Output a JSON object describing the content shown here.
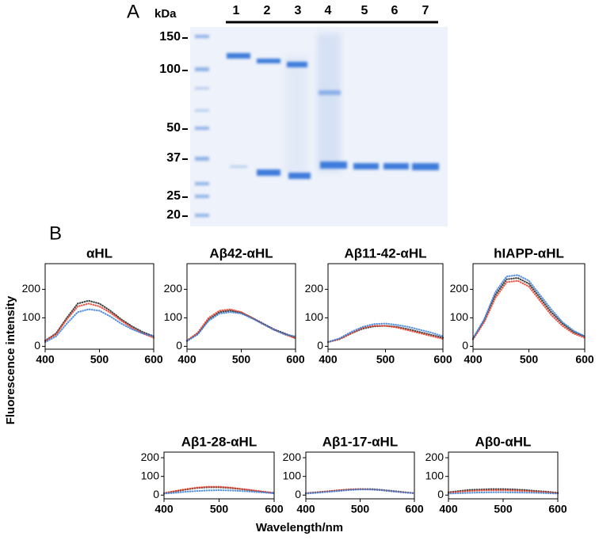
{
  "panel_a": {
    "label": "A",
    "unit": "kDa",
    "markers": [
      "150",
      "100",
      "50",
      "37",
      "25",
      "20"
    ],
    "lanes": [
      "1",
      "2",
      "3",
      "4",
      "5",
      "6",
      "7"
    ]
  },
  "panel_b_label": "B",
  "axis_labels": {
    "y": "Fluorescence intensity",
    "x": "Wavelength/nm"
  },
  "chart_data": [
    {
      "type": "line",
      "title": "αHL",
      "x": [
        400,
        420,
        440,
        460,
        480,
        500,
        520,
        540,
        560,
        580,
        600
      ],
      "xlim": [
        400,
        600
      ],
      "xticks": [
        400,
        500,
        600
      ],
      "ylim": [
        -10,
        290
      ],
      "yticks": [
        0,
        100,
        200
      ],
      "series": [
        {
          "color": "#222222",
          "values": [
            20,
            45,
            100,
            150,
            160,
            150,
            125,
            95,
            70,
            50,
            35
          ]
        },
        {
          "color": "#e8402a",
          "values": [
            18,
            42,
            95,
            140,
            150,
            140,
            118,
            90,
            65,
            45,
            30
          ]
        },
        {
          "color": "#3c7fd8",
          "values": [
            15,
            35,
            80,
            120,
            130,
            125,
            105,
            80,
            60,
            45,
            35
          ]
        }
      ]
    },
    {
      "type": "line",
      "title": "Aβ42-αHL",
      "x": [
        400,
        420,
        440,
        460,
        480,
        500,
        520,
        540,
        560,
        580,
        600
      ],
      "xlim": [
        400,
        600
      ],
      "xticks": [
        400,
        500,
        600
      ],
      "ylim": [
        -10,
        290
      ],
      "yticks": [
        0,
        100,
        200
      ],
      "series": [
        {
          "color": "#222222",
          "values": [
            20,
            45,
            95,
            120,
            125,
            118,
            100,
            80,
            60,
            45,
            30
          ]
        },
        {
          "color": "#e8402a",
          "values": [
            20,
            48,
            100,
            125,
            130,
            120,
            100,
            78,
            58,
            42,
            28
          ]
        },
        {
          "color": "#3c7fd8",
          "values": [
            18,
            42,
            90,
            115,
            120,
            115,
            98,
            78,
            58,
            42,
            35
          ]
        }
      ]
    },
    {
      "type": "line",
      "title": "Aβ11-42-αHL",
      "x": [
        400,
        420,
        440,
        460,
        480,
        500,
        520,
        540,
        560,
        580,
        600
      ],
      "xlim": [
        400,
        600
      ],
      "xticks": [
        400,
        500,
        600
      ],
      "ylim": [
        -10,
        290
      ],
      "yticks": [
        0,
        100,
        200
      ],
      "series": [
        {
          "color": "#222222",
          "values": [
            15,
            25,
            45,
            62,
            70,
            72,
            68,
            60,
            50,
            40,
            30
          ]
        },
        {
          "color": "#e8402a",
          "values": [
            15,
            25,
            45,
            65,
            72,
            72,
            66,
            56,
            46,
            36,
            26
          ]
        },
        {
          "color": "#3c7fd8",
          "values": [
            15,
            28,
            50,
            68,
            78,
            80,
            75,
            68,
            58,
            48,
            35
          ]
        }
      ]
    },
    {
      "type": "line",
      "title": "hIAPP-αHL",
      "x": [
        400,
        420,
        440,
        460,
        480,
        500,
        520,
        540,
        560,
        580,
        600
      ],
      "xlim": [
        400,
        600
      ],
      "xticks": [
        400,
        500,
        600
      ],
      "ylim": [
        -10,
        290
      ],
      "yticks": [
        0,
        100,
        200
      ],
      "series": [
        {
          "color": "#222222",
          "values": [
            25,
            90,
            180,
            235,
            240,
            220,
            170,
            120,
            80,
            50,
            35
          ]
        },
        {
          "color": "#e8402a",
          "values": [
            25,
            85,
            170,
            225,
            230,
            210,
            160,
            110,
            72,
            45,
            30
          ]
        },
        {
          "color": "#3c7fd8",
          "values": [
            28,
            95,
            190,
            245,
            250,
            230,
            180,
            130,
            85,
            55,
            35
          ]
        }
      ]
    },
    {
      "type": "line",
      "title": "Aβ1-28-αHL",
      "x": [
        400,
        420,
        440,
        460,
        480,
        500,
        520,
        540,
        560,
        580,
        600
      ],
      "xlim": [
        400,
        600
      ],
      "xticks": [
        400,
        500,
        600
      ],
      "ylim": [
        -20,
        230
      ],
      "yticks": [
        0,
        100,
        200
      ],
      "series": [
        {
          "color": "#222222",
          "values": [
            10,
            20,
            30,
            38,
            42,
            42,
            38,
            32,
            25,
            18,
            10
          ]
        },
        {
          "color": "#e8402a",
          "values": [
            10,
            22,
            32,
            40,
            45,
            45,
            40,
            33,
            26,
            18,
            12
          ]
        },
        {
          "color": "#3c7fd8",
          "values": [
            8,
            12,
            18,
            22,
            25,
            26,
            25,
            22,
            18,
            14,
            10
          ]
        }
      ]
    },
    {
      "type": "line",
      "title": "Aβ1-17-αHL",
      "x": [
        400,
        420,
        440,
        460,
        480,
        500,
        520,
        540,
        560,
        580,
        600
      ],
      "xlim": [
        400,
        600
      ],
      "xticks": [
        400,
        500,
        600
      ],
      "ylim": [
        -20,
        230
      ],
      "yticks": [
        0,
        100,
        200
      ],
      "series": [
        {
          "color": "#222222",
          "values": [
            10,
            15,
            20,
            25,
            30,
            32,
            32,
            28,
            22,
            16,
            10
          ]
        },
        {
          "color": "#e8402a",
          "values": [
            10,
            14,
            20,
            26,
            30,
            32,
            30,
            26,
            20,
            15,
            10
          ]
        },
        {
          "color": "#3c7fd8",
          "values": [
            8,
            12,
            17,
            22,
            27,
            30,
            30,
            26,
            20,
            14,
            10
          ]
        }
      ]
    },
    {
      "type": "line",
      "title": "Aβ0-αHL",
      "x": [
        400,
        420,
        440,
        460,
        480,
        500,
        520,
        540,
        560,
        580,
        600
      ],
      "xlim": [
        400,
        600
      ],
      "xticks": [
        400,
        500,
        600
      ],
      "ylim": [
        -20,
        230
      ],
      "yticks": [
        0,
        100,
        200
      ],
      "series": [
        {
          "color": "#222222",
          "values": [
            15,
            22,
            28,
            30,
            32,
            32,
            30,
            27,
            22,
            18,
            12
          ]
        },
        {
          "color": "#e8402a",
          "values": [
            12,
            18,
            22,
            25,
            26,
            26,
            24,
            22,
            18,
            15,
            10
          ]
        },
        {
          "color": "#3c7fd8",
          "values": [
            8,
            10,
            12,
            14,
            15,
            15,
            14,
            13,
            12,
            10,
            8
          ]
        }
      ]
    }
  ]
}
